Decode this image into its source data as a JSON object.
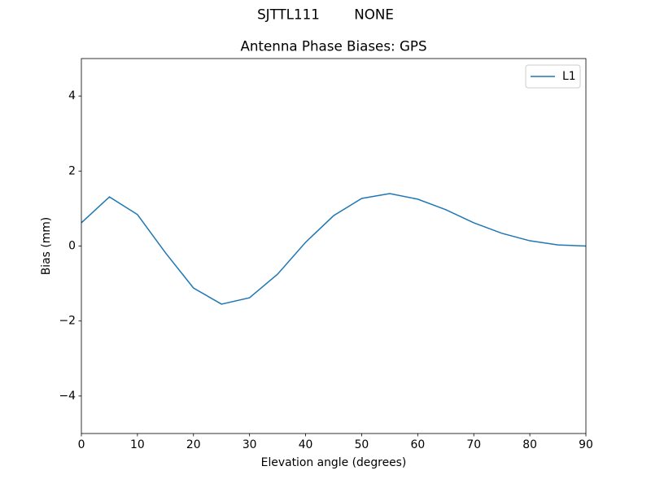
{
  "chart_data": {
    "type": "line",
    "suptitle": "SJTTL111        NONE",
    "title": "Antenna Phase Biases: GPS",
    "xlabel": "Elevation angle (degrees)",
    "ylabel": "Bias (mm)",
    "x": [
      0,
      5,
      10,
      15,
      20,
      25,
      30,
      35,
      40,
      45,
      50,
      55,
      60,
      65,
      70,
      75,
      80,
      85,
      90
    ],
    "series": [
      {
        "name": "L1",
        "color": "#1f77b4",
        "values": [
          0.62,
          1.31,
          0.84,
          -0.18,
          -1.12,
          -1.55,
          -1.38,
          -0.75,
          0.1,
          0.81,
          1.27,
          1.4,
          1.25,
          0.97,
          0.62,
          0.34,
          0.14,
          0.03,
          0.0
        ]
      }
    ],
    "xlim": [
      0,
      90
    ],
    "xticks": [
      0,
      10,
      20,
      30,
      40,
      50,
      60,
      70,
      80,
      90
    ],
    "ylim": [
      -5,
      5
    ],
    "yticks": [
      {
        "value": -4,
        "label": "−4"
      },
      {
        "value": -2,
        "label": "−2"
      },
      0,
      2,
      4
    ],
    "legend": "upper right"
  }
}
